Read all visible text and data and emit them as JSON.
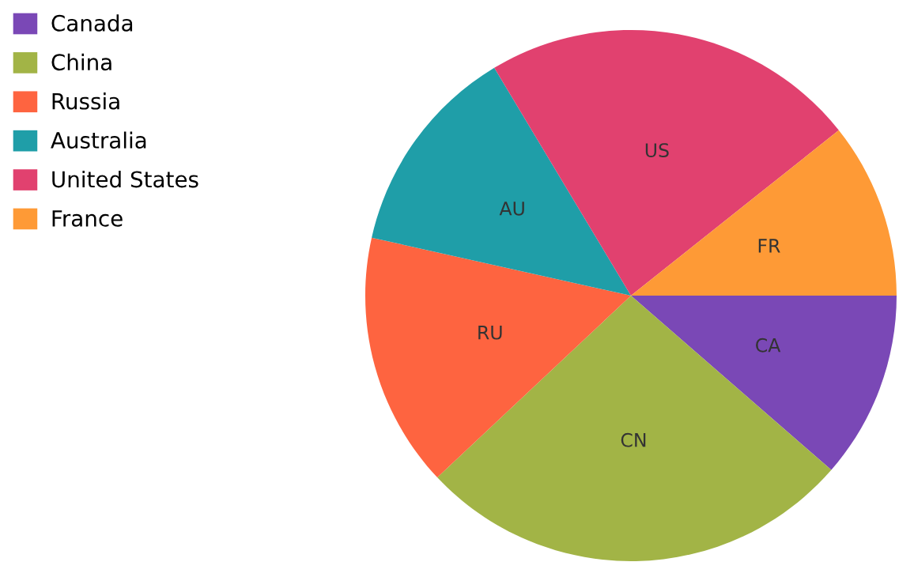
{
  "chart_data": {
    "type": "pie",
    "categories": [
      "Canada",
      "China",
      "Russia",
      "Australia",
      "United States",
      "France"
    ],
    "values": [
      11.4,
      26.6,
      15.5,
      12.9,
      22.9,
      10.7
    ],
    "colors": [
      "#7a48b6",
      "#a2b446",
      "#fe6440",
      "#1f9ea8",
      "#e1416f",
      "#fe9a36"
    ],
    "value_labels": [
      "CA",
      "CN",
      "RU",
      "AU",
      "US",
      "FR"
    ],
    "legend": "top left"
  }
}
